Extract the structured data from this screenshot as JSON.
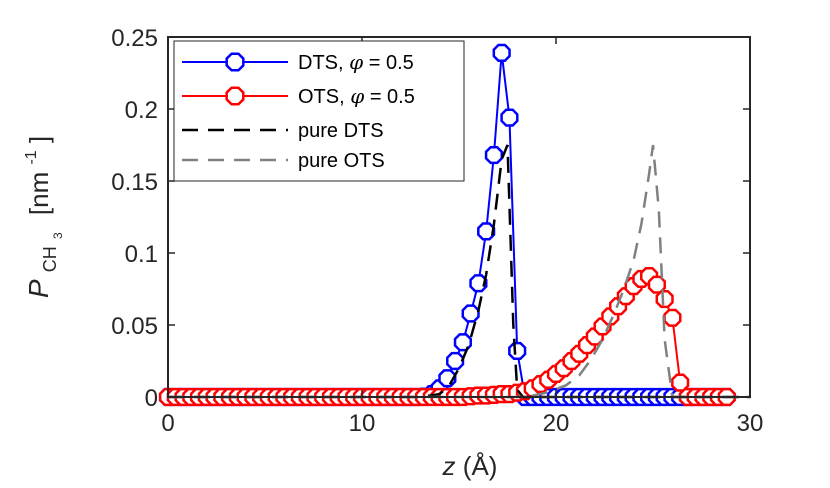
{
  "chart_data": {
    "type": "line",
    "title": "",
    "xlabel": "z (Å)",
    "xlabel_var": "z",
    "xlabel_unit": "(Å)",
    "ylabel": "P_CH3 [nm^-1]",
    "ylabel_var": "P",
    "ylabel_sub1": "CH",
    "ylabel_sub2": "3",
    "ylabel_unit": "[nm",
    "ylabel_exp": "-1",
    "ylabel_close": "]",
    "xlim": [
      0,
      30
    ],
    "ylim": [
      0,
      0.25
    ],
    "xticks": [
      0,
      10,
      20,
      30
    ],
    "xtick_labels": [
      "0",
      "10",
      "20",
      "30"
    ],
    "yticks": [
      0,
      0.05,
      0.1,
      0.15,
      0.2,
      0.25
    ],
    "ytick_labels": [
      "0",
      "0.05",
      "0.1",
      "0.15",
      "0.2",
      "0.25"
    ],
    "grid": false,
    "legend_position": "top-left",
    "series": [
      {
        "name": "DTS, φ = 0.5",
        "legend_prefix": "DTS, ",
        "legend_phi": "φ",
        "legend_suffix": " = 0.5",
        "color": "#0000ff",
        "style": "line-circle",
        "x": [
          0.0,
          0.4,
          0.8,
          1.2,
          1.6,
          2.0,
          2.4,
          2.8,
          3.2,
          3.6,
          4.0,
          4.4,
          4.8,
          5.2,
          5.6,
          6.0,
          6.4,
          6.8,
          7.2,
          7.6,
          8.0,
          8.4,
          8.8,
          9.2,
          9.6,
          10.0,
          10.4,
          10.8,
          11.2,
          11.6,
          12.0,
          12.4,
          12.8,
          13.2,
          13.6,
          14.0,
          14.4,
          14.8,
          15.2,
          15.6,
          16.0,
          16.4,
          16.8,
          17.2,
          17.6,
          18.0,
          18.4,
          18.8,
          19.2,
          19.6,
          20.0,
          20.4,
          20.8,
          21.2,
          21.6,
          22.0,
          22.4,
          22.8,
          23.2,
          23.6,
          24.0,
          24.4,
          24.8,
          25.2,
          25.6,
          26.0,
          26.4,
          26.8,
          27.2,
          27.6,
          28.0,
          28.4,
          28.8
        ],
        "y": [
          0,
          0,
          0,
          0,
          0,
          0,
          0,
          0,
          0,
          0,
          0,
          0,
          0,
          0,
          0,
          0,
          0,
          0,
          0,
          0,
          0,
          0,
          0,
          0,
          0,
          0,
          0,
          0,
          0,
          0,
          0,
          0,
          0,
          0.0003,
          0.002,
          0.006,
          0.013,
          0.025,
          0.038,
          0.058,
          0.079,
          0.115,
          0.168,
          0.239,
          0.194,
          0.032,
          0,
          0,
          0,
          0,
          0,
          0,
          0,
          0,
          0,
          0,
          0,
          0,
          0,
          0,
          0,
          0,
          0,
          0,
          0,
          0,
          0,
          0,
          0,
          0,
          0,
          0,
          0
        ]
      },
      {
        "name": "OTS, φ = 0.5",
        "legend_prefix": "OTS, ",
        "legend_phi": "φ",
        "legend_suffix": " = 0.5",
        "color": "#ff0000",
        "style": "line-circle",
        "x": [
          0.0,
          0.4,
          0.8,
          1.2,
          1.6,
          2.0,
          2.4,
          2.8,
          3.2,
          3.6,
          4.0,
          4.4,
          4.8,
          5.2,
          5.6,
          6.0,
          6.4,
          6.8,
          7.2,
          7.6,
          8.0,
          8.4,
          8.8,
          9.2,
          9.6,
          10.0,
          10.4,
          10.8,
          11.2,
          11.6,
          12.0,
          12.4,
          12.8,
          13.2,
          13.6,
          14.0,
          14.4,
          14.8,
          15.2,
          15.6,
          16.0,
          16.4,
          16.8,
          17.2,
          17.6,
          18.0,
          18.4,
          18.8,
          19.2,
          19.6,
          20.0,
          20.4,
          20.8,
          21.2,
          21.6,
          22.0,
          22.4,
          22.8,
          23.2,
          23.6,
          24.0,
          24.4,
          24.8,
          25.2,
          25.6,
          26.0,
          26.4,
          26.8,
          27.2,
          27.6,
          28.0,
          28.4,
          28.8
        ],
        "y": [
          0,
          0,
          0,
          0,
          0,
          0,
          0,
          0,
          0,
          0,
          0,
          0,
          0,
          0,
          0,
          0,
          0,
          0,
          0,
          0,
          0,
          0,
          0,
          0,
          0,
          0,
          0,
          0,
          0,
          0,
          0,
          0,
          0,
          0,
          0,
          0,
          0,
          0,
          0,
          0.0005,
          0.001,
          0.001,
          0.0015,
          0.002,
          0.002,
          0.003,
          0.004,
          0.006,
          0.009,
          0.012,
          0.016,
          0.02,
          0.025,
          0.03,
          0.036,
          0.042,
          0.049,
          0.056,
          0.063,
          0.07,
          0.077,
          0.082,
          0.084,
          0.078,
          0.068,
          0.055,
          0.01,
          0,
          0,
          0,
          0,
          0,
          0
        ]
      },
      {
        "name": "pure DTS",
        "color": "#000000",
        "style": "dashed",
        "x": [
          0,
          13.0,
          14.0,
          14.5,
          15.0,
          15.5,
          16.0,
          16.4,
          16.8,
          17.2,
          17.5,
          17.8,
          18.0,
          18.3,
          30
        ],
        "y": [
          0,
          0,
          0.002,
          0.008,
          0.02,
          0.036,
          0.06,
          0.085,
          0.12,
          0.165,
          0.175,
          0.05,
          0.005,
          0,
          0
        ]
      },
      {
        "name": "pure OTS",
        "color": "#808080",
        "style": "dashed",
        "x": [
          0,
          18.5,
          19.5,
          20.5,
          21.2,
          21.8,
          22.4,
          23.0,
          23.5,
          24.0,
          24.4,
          24.8,
          25.0,
          25.3,
          25.6,
          26.0,
          30
        ],
        "y": [
          0,
          0,
          0.003,
          0.008,
          0.015,
          0.026,
          0.04,
          0.058,
          0.075,
          0.095,
          0.12,
          0.155,
          0.175,
          0.13,
          0.04,
          0,
          0
        ]
      }
    ]
  }
}
